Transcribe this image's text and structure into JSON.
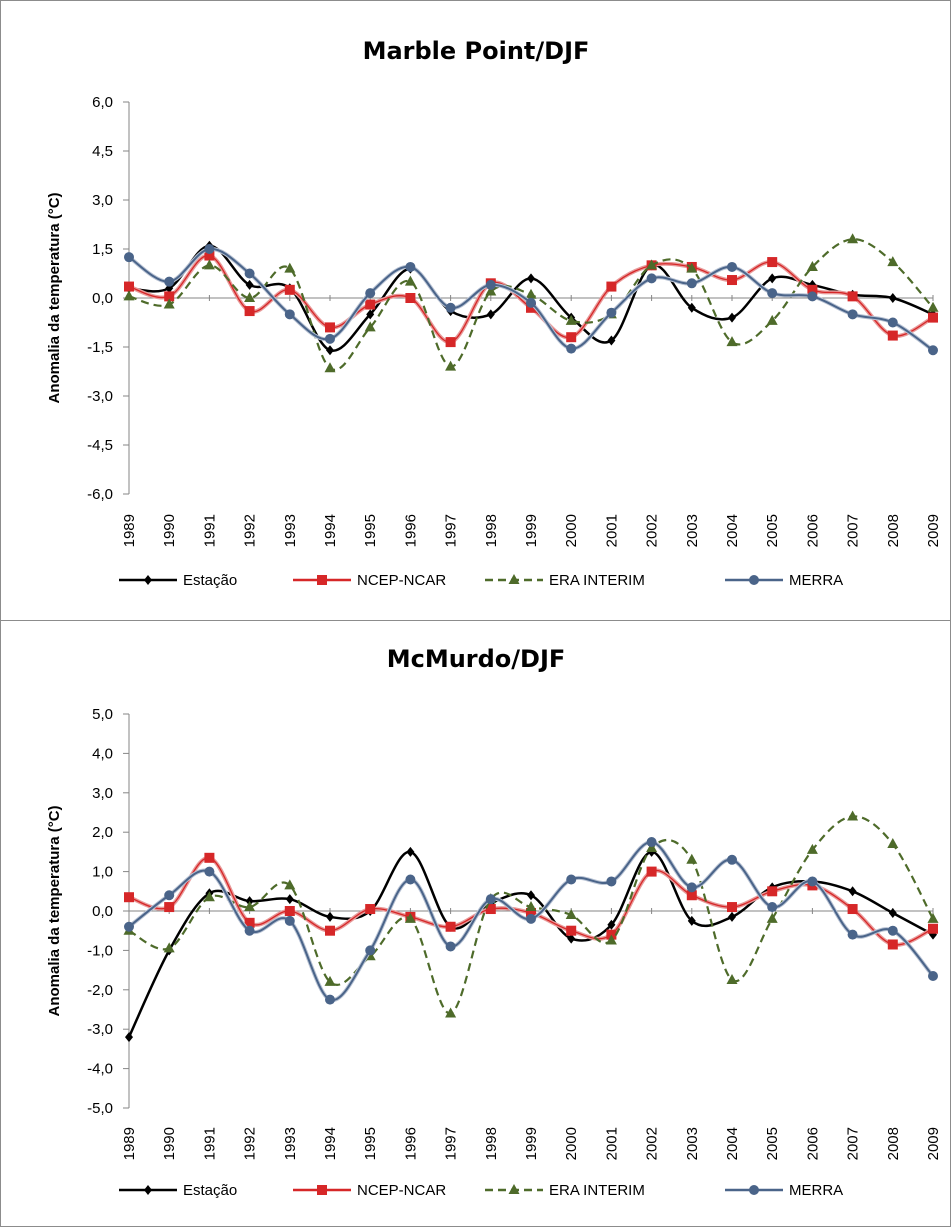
{
  "chart_data": [
    {
      "type": "line",
      "title": "Marble Point/DJF",
      "ylabel": "Anomalia da temperatura (°C)",
      "ylim": [
        -6.0,
        6.0
      ],
      "yticks": [
        "6,0",
        "4,5",
        "3,0",
        "1,5",
        "0,0",
        "-1,5",
        "-3,0",
        "-4,5",
        "-6,0"
      ],
      "ytick_values": [
        6.0,
        4.5,
        3.0,
        1.5,
        0.0,
        -1.5,
        -3.0,
        -4.5,
        -6.0
      ],
      "categories": [
        "1989",
        "1990",
        "1991",
        "1992",
        "1993",
        "1994",
        "1995",
        "1996",
        "1997",
        "1998",
        "1999",
        "2000",
        "2001",
        "2002",
        "2003",
        "2004",
        "2005",
        "2006",
        "2007",
        "2008",
        "2009"
      ],
      "legend_position": "bottom",
      "series": [
        {
          "name": "Estação",
          "color": "#000000",
          "dash": "none",
          "marker": "diamond",
          "values": [
            0.3,
            0.3,
            1.6,
            0.4,
            0.3,
            -1.6,
            -0.5,
            0.9,
            -0.4,
            -0.5,
            0.6,
            -0.6,
            -1.3,
            1.0,
            -0.3,
            -0.6,
            0.6,
            0.4,
            0.1,
            0.0,
            -0.5
          ]
        },
        {
          "name": "NCEP-NCAR",
          "color": "#d62728",
          "dash": "none",
          "marker": "square",
          "values": [
            0.35,
            0.05,
            1.3,
            -0.4,
            0.25,
            -0.9,
            -0.2,
            0.0,
            -1.35,
            0.45,
            -0.3,
            -1.2,
            0.35,
            1.0,
            0.95,
            0.55,
            1.1,
            0.25,
            0.05,
            -1.15,
            -0.6
          ]
        },
        {
          "name": "ERA INTERIM",
          "color": "#4e6b2a",
          "dash": "8,5",
          "marker": "triangle",
          "values": [
            0.05,
            -0.2,
            1.0,
            0.0,
            0.9,
            -2.15,
            -0.9,
            0.5,
            -2.1,
            0.2,
            0.1,
            -0.7,
            -0.5,
            1.0,
            0.9,
            -1.35,
            -0.7,
            0.95,
            1.8,
            1.1,
            -0.3
          ]
        },
        {
          "name": "MERRA",
          "color": "#4a6489",
          "dash": "none",
          "marker": "circle",
          "values": [
            1.25,
            0.5,
            1.5,
            0.75,
            -0.5,
            -1.25,
            0.15,
            0.95,
            -0.3,
            0.4,
            -0.15,
            -1.55,
            -0.45,
            0.6,
            0.45,
            0.95,
            0.15,
            0.05,
            -0.5,
            -0.75,
            -1.6
          ]
        }
      ]
    },
    {
      "type": "line",
      "title": "McMurdo/DJF",
      "ylabel": "Anomalia da temperatura (°C)",
      "ylim": [
        -5.0,
        5.0
      ],
      "yticks": [
        "5,0",
        "4,0",
        "3,0",
        "2,0",
        "1,0",
        "0,0",
        "-1,0",
        "-2,0",
        "-3,0",
        "-4,0",
        "-5,0"
      ],
      "ytick_values": [
        5.0,
        4.0,
        3.0,
        2.0,
        1.0,
        0.0,
        -1.0,
        -2.0,
        -3.0,
        -4.0,
        -5.0
      ],
      "categories": [
        "1989",
        "1990",
        "1991",
        "1992",
        "1993",
        "1994",
        "1995",
        "1996",
        "1997",
        "1998",
        "1999",
        "2000",
        "2001",
        "2002",
        "2003",
        "2004",
        "2005",
        "2006",
        "2007",
        "2008",
        "2009"
      ],
      "legend_position": "bottom",
      "series": [
        {
          "name": "Estação",
          "color": "#000000",
          "dash": "none",
          "marker": "diamond",
          "values": [
            -3.2,
            -1.0,
            0.45,
            0.25,
            0.3,
            -0.15,
            0.0,
            1.5,
            -0.4,
            0.2,
            0.4,
            -0.7,
            -0.35,
            1.5,
            -0.25,
            -0.15,
            0.6,
            0.75,
            0.5,
            -0.05,
            -0.6
          ]
        },
        {
          "name": "NCEP-NCAR",
          "color": "#d62728",
          "dash": "none",
          "marker": "square",
          "values": [
            0.35,
            0.1,
            1.35,
            -0.3,
            0.0,
            -0.5,
            0.05,
            -0.15,
            -0.4,
            0.05,
            -0.05,
            -0.5,
            -0.6,
            1.0,
            0.4,
            0.1,
            0.5,
            0.65,
            0.05,
            -0.85,
            -0.45
          ]
        },
        {
          "name": "ERA INTERIM",
          "color": "#4e6b2a",
          "dash": "8,5",
          "marker": "triangle",
          "values": [
            -0.5,
            -0.95,
            0.35,
            0.1,
            0.65,
            -1.8,
            -1.15,
            -0.2,
            -2.6,
            0.3,
            0.1,
            -0.1,
            -0.75,
            1.6,
            1.3,
            -1.75,
            -0.2,
            1.55,
            2.4,
            1.7,
            -0.2
          ]
        },
        {
          "name": "MERRA",
          "color": "#4a6489",
          "dash": "none",
          "marker": "circle",
          "values": [
            -0.4,
            0.4,
            1.0,
            -0.5,
            -0.25,
            -2.25,
            -1.0,
            0.8,
            -0.9,
            0.3,
            -0.2,
            0.8,
            0.75,
            1.75,
            0.6,
            1.3,
            0.1,
            0.75,
            -0.6,
            -0.5,
            -1.65
          ]
        }
      ]
    }
  ]
}
